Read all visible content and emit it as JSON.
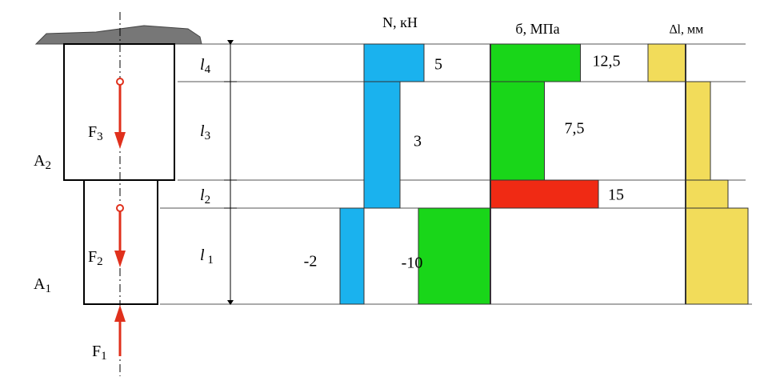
{
  "body": {
    "A2": {
      "letter": "A",
      "sub": "2"
    },
    "A1": {
      "letter": "A",
      "sub": "1"
    },
    "F3": {
      "letter": "F",
      "sub": "3"
    },
    "F2": {
      "letter": "F",
      "sub": "2"
    },
    "F1": {
      "letter": "F",
      "sub": "1"
    },
    "lengths": [
      {
        "letter": "l",
        "sub": "4"
      },
      {
        "letter": "l",
        "sub": "3"
      },
      {
        "letter": "l",
        "sub": "2"
      },
      {
        "letter": "l",
        "sub": " 1"
      }
    ]
  },
  "N": {
    "title": "N, кН",
    "values": [
      5,
      3,
      -2
    ],
    "color": "#1ab2ee"
  },
  "sigma": {
    "title": "б, МПа",
    "values": [
      12.5,
      7.5,
      15,
      -10
    ],
    "value_labels": [
      "12,5",
      "7,5",
      "15",
      "-10"
    ],
    "colors": [
      "#19d619",
      "#19d619",
      "#f02a14",
      "#19d619"
    ]
  },
  "dl": {
    "title": "∆l, мм"
  }
}
